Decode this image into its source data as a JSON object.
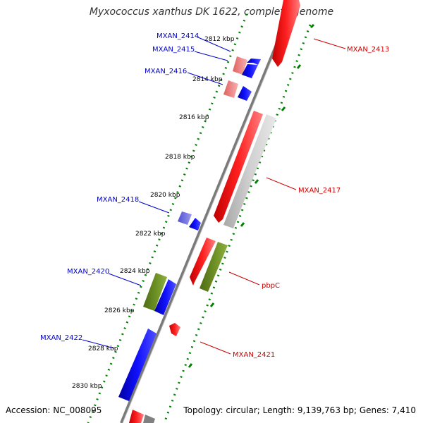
{
  "title": "Myxococcus xanthus DK 1622, complete genome",
  "footer": {
    "accession": "Accession: NC_008095",
    "topology": "Topology: circular; Length: 9,139,763 bp; Genes: 7,410"
  },
  "colors": {
    "forward_gene": "#0000ff",
    "reverse_gene": "#ff0000",
    "light_forward": "#7070ff",
    "light_reverse": "#f08080",
    "rna_like": "#6b8e23",
    "grey_feature": "#c8c8c8",
    "forward_label": "#0000cc",
    "reverse_label": "#cc0000",
    "backbone": "#808080",
    "tick_dot": "#008000"
  },
  "kbp_ticks": [
    "2812 kbp",
    "2814 kbp",
    "2816 kbp",
    "2818 kbp",
    "2820 kbp",
    "2822 kbp",
    "2824 kbp",
    "2826 kbp",
    "2828 kbp",
    "2830 kbp"
  ],
  "genes_forward": [
    {
      "label": "MXAN_2414"
    },
    {
      "label": "MXAN_2415"
    },
    {
      "label": "MXAN_2416"
    },
    {
      "label": "MXAN_2418"
    },
    {
      "label": "MXAN_2420"
    },
    {
      "label": "MXAN_2422"
    }
  ],
  "genes_reverse": [
    {
      "label": "MXAN_2413"
    },
    {
      "label": "MXAN_2417"
    },
    {
      "label": "pbpC"
    },
    {
      "label": "MXAN_2421"
    }
  ]
}
